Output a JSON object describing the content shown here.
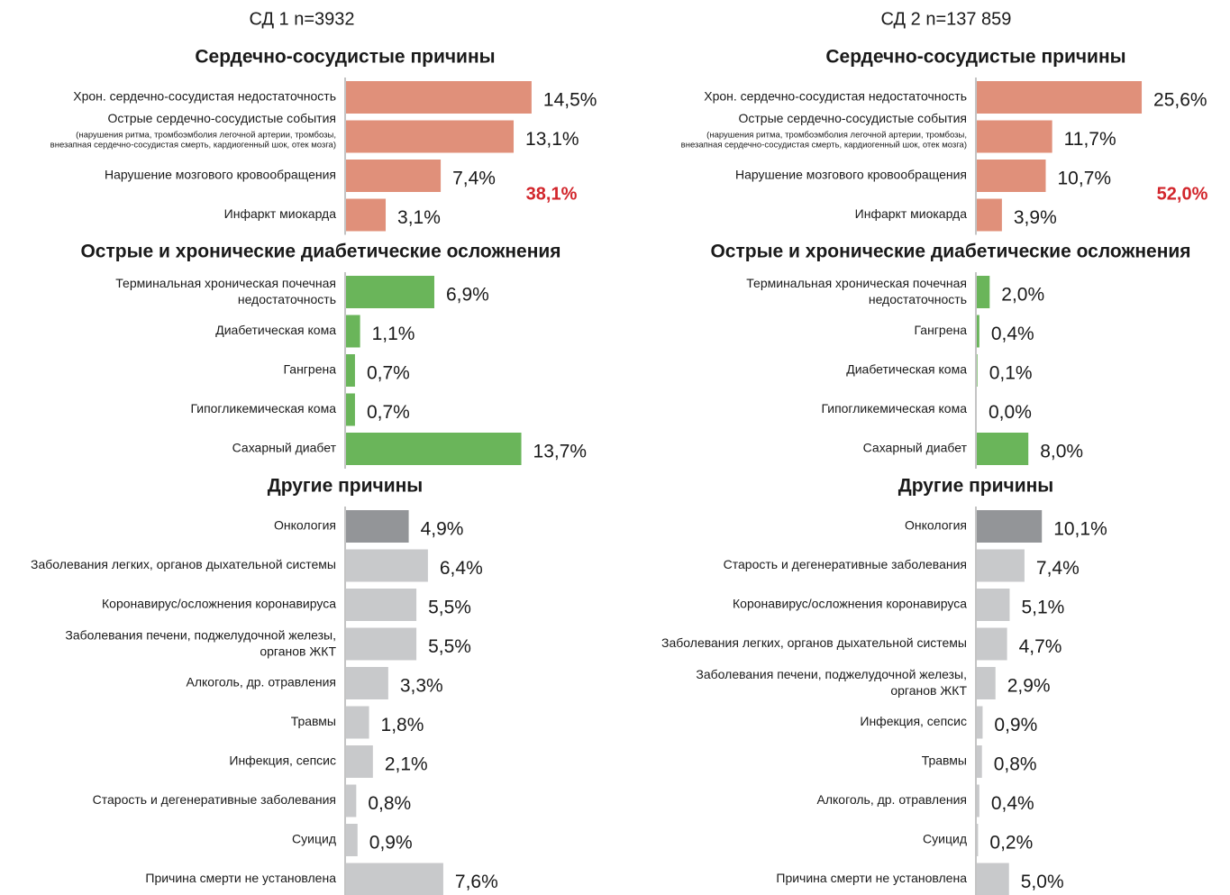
{
  "chart_data": [
    {
      "type": "bar",
      "title": "СД 1 n=3932",
      "groups": [
        {
          "title": "Сердечно-сосудистые причины",
          "color": "#e0907a",
          "categories": [
            "Хрон. сердечно-сосудистая недостаточность",
            "Острые сердечно-сосудистые события",
            "Нарушение мозгового кровообращения",
            "Инфаркт миокарда"
          ],
          "category_notes": [
            null,
            "(нарушения ритма, тромбоэмболия легочной артерии, тромбозы,\nвнезапная сердечно-сосудистая смерть, кардиогенный шок, отек мозга)",
            null,
            null
          ],
          "values": [
            14.5,
            13.1,
            7.4,
            3.1
          ],
          "value_labels": [
            "14,5%",
            "13,1%",
            "7,4%",
            "3,1%"
          ],
          "total": 38.1,
          "total_label": "38,1%"
        },
        {
          "title": "Острые и хронические диабетические осложнения",
          "color": "#6ab55a",
          "categories": [
            "Терминальная хроническая почечная\nнедостаточность",
            "Диабетическая кома",
            "Гангрена",
            "Гипогликемическая кома",
            "Сахарный диабет"
          ],
          "values": [
            6.9,
            1.1,
            0.7,
            0.7,
            13.7
          ],
          "value_labels": [
            "6,9%",
            "1,1%",
            "0,7%",
            "0,7%",
            "13,7%"
          ]
        },
        {
          "title": "Другие причины",
          "categories": [
            "Онкология",
            "Заболевания легких, органов дыхательной системы",
            "Коронавирус/осложнения коронавируса",
            "Заболевания печени, поджелудочной железы,\nорганов ЖКТ",
            "Алкоголь, др. отравления",
            "Травмы",
            "Инфекция, сепсис",
            "Старость и дегенеративные заболевания",
            "Суицид",
            "Причина смерти не установлена"
          ],
          "colors": [
            "#939598",
            "#c8c9cb",
            "#c8c9cb",
            "#c8c9cb",
            "#c8c9cb",
            "#c8c9cb",
            "#c8c9cb",
            "#c8c9cb",
            "#c8c9cb",
            "#c8c9cb"
          ],
          "values": [
            4.9,
            6.4,
            5.5,
            5.5,
            3.3,
            1.8,
            2.1,
            0.8,
            0.9,
            7.6
          ],
          "value_labels": [
            "4,9%",
            "6,4%",
            "5,5%",
            "5,5%",
            "3,3%",
            "1,8%",
            "2,1%",
            "0,8%",
            "0,9%",
            "7,6%"
          ]
        }
      ]
    },
    {
      "type": "bar",
      "title": "СД 2 n=137 859",
      "groups": [
        {
          "title": "Сердечно-сосудистые причины",
          "color": "#e0907a",
          "categories": [
            "Хрон. сердечно-сосудистая недостаточность",
            "Острые сердечно-сосудистые события",
            "Нарушение мозгового кровообращения",
            "Инфаркт миокарда"
          ],
          "category_notes": [
            null,
            "(нарушения ритма, тромбоэмболия легочной артерии, тромбозы,\nвнезапная сердечно-сосудистая смерть, кардиогенный шок, отек мозга)",
            null,
            null
          ],
          "values": [
            25.6,
            11.7,
            10.7,
            3.9
          ],
          "value_labels": [
            "25,6%",
            "11,7%",
            "10,7%",
            "3,9%"
          ],
          "total": 52.0,
          "total_label": "52,0%"
        },
        {
          "title": "Острые и хронические диабетические осложнения",
          "color": "#6ab55a",
          "categories": [
            "Терминальная хроническая почечная\nнедостаточность",
            "Гангрена",
            "Диабетическая кома",
            "Гипогликемическая кома",
            "Сахарный диабет"
          ],
          "values": [
            2.0,
            0.4,
            0.1,
            0.0,
            8.0
          ],
          "value_labels": [
            "2,0%",
            "0,4%",
            "0,1%",
            "0,0%",
            "8,0%"
          ]
        },
        {
          "title": "Другие причины",
          "categories": [
            "Онкология",
            "Старость и дегенеративные заболевания",
            "Коронавирус/осложнения коронавируса",
            "Заболевания легких, органов дыхательной системы",
            "Заболевания печени, поджелудочной железы,\nорганов ЖКТ",
            "Инфекция, сепсис",
            "Травмы",
            "Алкоголь, др. отравления",
            "Суицид",
            "Причина смерти не установлена"
          ],
          "colors": [
            "#939598",
            "#c8c9cb",
            "#c8c9cb",
            "#c8c9cb",
            "#c8c9cb",
            "#c8c9cb",
            "#c8c9cb",
            "#c8c9cb",
            "#c8c9cb",
            "#c8c9cb"
          ],
          "values": [
            10.1,
            7.4,
            5.1,
            4.7,
            2.9,
            0.9,
            0.8,
            0.4,
            0.2,
            5.0
          ],
          "value_labels": [
            "10,1%",
            "7,4%",
            "5,1%",
            "4,7%",
            "2,9%",
            "0,9%",
            "0,8%",
            "0,4%",
            "0,2%",
            "5,0%"
          ]
        }
      ]
    }
  ]
}
